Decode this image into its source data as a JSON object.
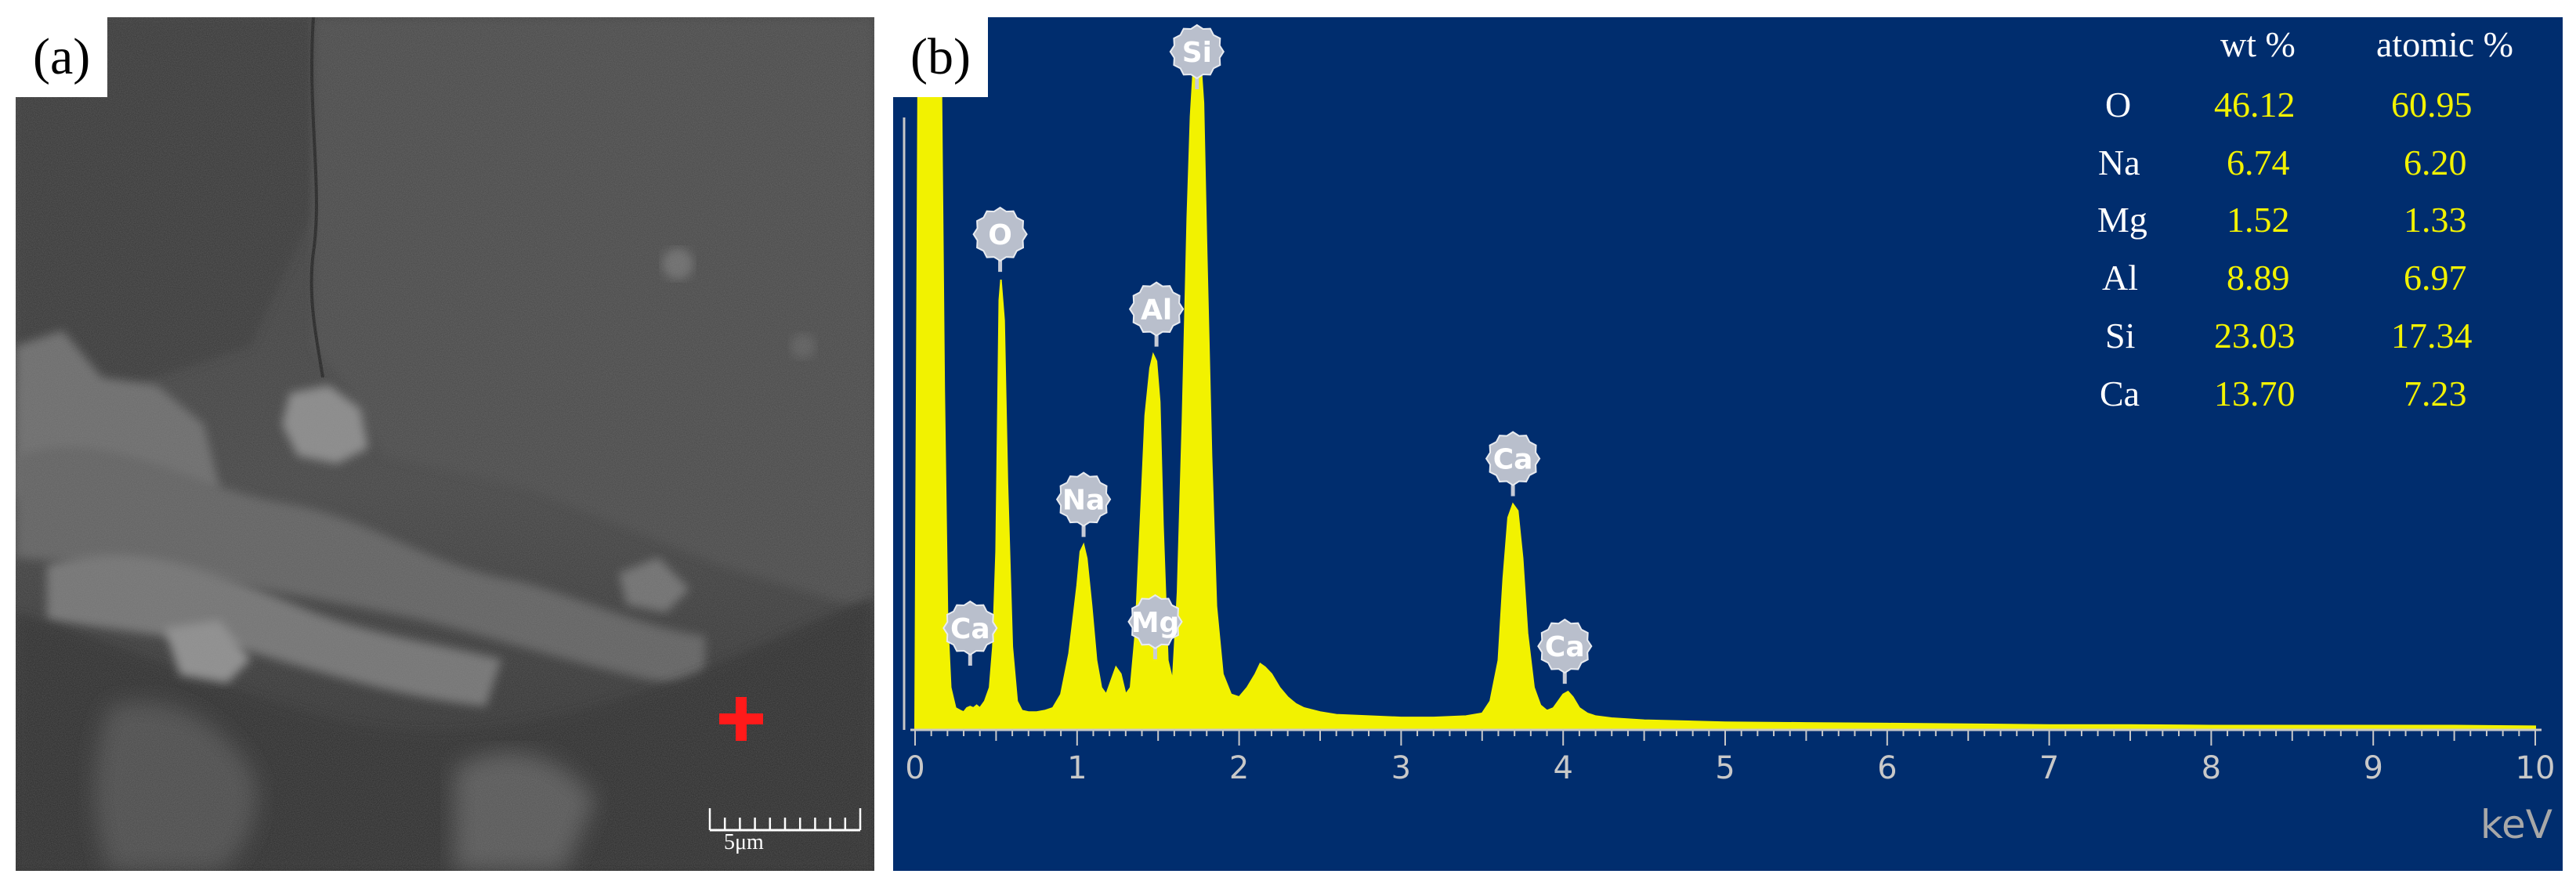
{
  "panel_a": {
    "label": "(a)",
    "scale_bar_label": "5μm",
    "marker_color": "#ff1a1a"
  },
  "panel_b": {
    "label": "(b)",
    "background_color": "#002d6e",
    "spectrum_color": "#f2f200"
  },
  "composition_table": {
    "headers": [
      "wt %",
      "atomic %"
    ],
    "rows": [
      {
        "element": "O",
        "wt": "46.12",
        "atomic": "60.95"
      },
      {
        "element": "Na",
        "wt": "6.74",
        "atomic": "6.20"
      },
      {
        "element": "Mg",
        "wt": "1.52",
        "atomic": "1.33"
      },
      {
        "element": "Al",
        "wt": "8.89",
        "atomic": "6.97"
      },
      {
        "element": "Si",
        "wt": "23.03",
        "atomic": "17.34"
      },
      {
        "element": "Ca",
        "wt": "13.70",
        "atomic": "7.23"
      }
    ]
  },
  "chart_data": {
    "type": "line",
    "xlabel": "keV",
    "ylabel": "",
    "xlim": [
      0,
      10
    ],
    "ylim": [
      0,
      100
    ],
    "x_ticks": [
      "0",
      "1",
      "2",
      "3",
      "4",
      "5",
      "6",
      "7",
      "8",
      "9",
      "10"
    ],
    "peaks": [
      {
        "label": "Ca",
        "x": 0.34
      },
      {
        "label": "O",
        "x": 0.525
      },
      {
        "label": "Na",
        "x": 1.04
      },
      {
        "label": "Mg",
        "x": 1.25
      },
      {
        "label": "Al",
        "x": 1.49
      },
      {
        "label": "Si",
        "x": 1.74
      },
      {
        "label": "Ca",
        "x": 3.69
      },
      {
        "label": "Ca",
        "x": 4.01
      }
    ],
    "series": [
      {
        "x": [
          0.0,
          0.02,
          0.04,
          0.06,
          0.08,
          0.1,
          0.12,
          0.14,
          0.16,
          0.18,
          0.2,
          0.22,
          0.25,
          0.28,
          0.3,
          0.32,
          0.34,
          0.36,
          0.38,
          0.4,
          0.43,
          0.46,
          0.48,
          0.5,
          0.52,
          0.53,
          0.55,
          0.57,
          0.6,
          0.63,
          0.66,
          0.7,
          0.75,
          0.8,
          0.85,
          0.9,
          0.95,
          0.98,
          1.0,
          1.02,
          1.04,
          1.06,
          1.09,
          1.12,
          1.15,
          1.18,
          1.21,
          1.24,
          1.27,
          1.3,
          1.33,
          1.36,
          1.39,
          1.42,
          1.45,
          1.47,
          1.49,
          1.51,
          1.53,
          1.56,
          1.59,
          1.62,
          1.65,
          1.68,
          1.7,
          1.72,
          1.74,
          1.76,
          1.78,
          1.8,
          1.83,
          1.86,
          1.9,
          1.95,
          2.0,
          2.05,
          2.1,
          2.13,
          2.16,
          2.2,
          2.25,
          2.3,
          2.35,
          2.4,
          2.5,
          2.6,
          2.8,
          3.0,
          3.2,
          3.4,
          3.5,
          3.55,
          3.6,
          3.63,
          3.66,
          3.69,
          3.72,
          3.75,
          3.78,
          3.82,
          3.86,
          3.9,
          3.94,
          3.97,
          4.0,
          4.03,
          4.06,
          4.1,
          4.15,
          4.2,
          4.3,
          4.5,
          5.0,
          5.5,
          6.0,
          6.5,
          7.0,
          7.5,
          8.0,
          8.5,
          9.0,
          9.5,
          10.0
        ],
        "y": [
          0,
          100,
          100,
          100,
          100,
          100,
          100,
          100,
          100,
          50,
          16,
          6,
          3,
          2.6,
          2.4,
          3,
          3.2,
          3,
          3.4,
          3,
          4,
          6,
          12,
          26,
          63,
          66,
          60,
          36,
          12,
          4,
          2.6,
          2.4,
          2.4,
          2.6,
          3,
          5,
          11,
          17,
          21,
          26,
          27,
          25,
          18,
          10,
          6,
          5,
          7,
          9,
          8,
          5,
          6,
          14,
          30,
          46,
          53,
          55,
          54,
          48,
          30,
          10,
          7,
          20,
          45,
          75,
          90,
          98,
          100,
          99,
          92,
          70,
          40,
          18,
          8,
          5,
          4.6,
          6,
          8,
          9.5,
          9,
          8,
          6,
          4.6,
          3.6,
          3,
          2.4,
          2,
          1.8,
          1.6,
          1.6,
          1.8,
          2.2,
          4,
          10,
          22,
          31,
          33,
          32,
          25,
          14,
          6,
          3.4,
          2.6,
          3,
          4,
          5,
          5.4,
          4.6,
          3,
          2.2,
          1.8,
          1.5,
          1.2,
          0.9,
          0.8,
          0.7,
          0.6,
          0.5,
          0.5,
          0.4,
          0.4,
          0.4,
          0.4,
          0.3
        ]
      }
    ]
  }
}
